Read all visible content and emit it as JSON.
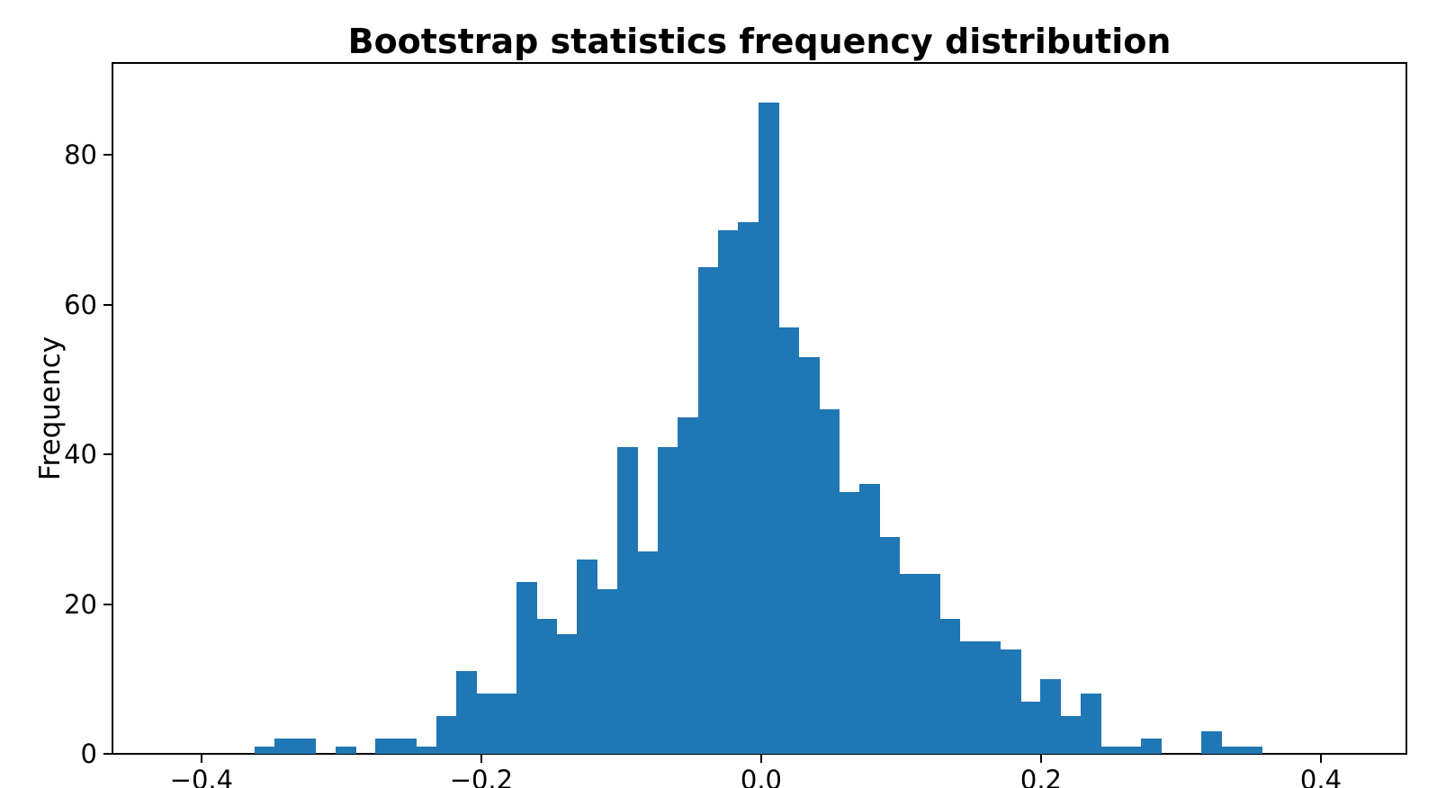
{
  "chart_data": {
    "type": "bar",
    "subtype": "histogram",
    "title": "Bootstrap statistics frequency distribution",
    "xlabel": "",
    "ylabel": "Frequency",
    "bar_color": "#1f77b4",
    "text_color": "#000000",
    "background_color": "#ffffff",
    "grid": false,
    "legend": null,
    "bin_start": -0.362,
    "bin_width": 0.0144,
    "num_bins": 50,
    "total_samples": 1000,
    "counts": [
      1,
      2,
      2,
      0,
      1,
      0,
      2,
      2,
      1,
      5,
      11,
      8,
      8,
      23,
      18,
      16,
      26,
      22,
      41,
      27,
      41,
      45,
      65,
      70,
      71,
      87,
      57,
      53,
      46,
      35,
      36,
      29,
      24,
      24,
      18,
      15,
      15,
      14,
      7,
      10,
      5,
      8,
      1,
      1,
      2,
      0,
      0,
      3,
      1,
      1
    ],
    "xlim": [
      -0.4636,
      0.4611
    ],
    "ylim": [
      0,
      92.3
    ],
    "xticks": {
      "values": [
        -0.4,
        -0.2,
        0.0,
        0.2,
        0.4
      ],
      "labels": [
        "−0.4",
        "−0.2",
        "0.0",
        "0.2",
        "0.4"
      ]
    },
    "yticks": {
      "values": [
        0,
        20,
        40,
        60,
        80
      ],
      "labels": [
        "0",
        "20",
        "40",
        "60",
        "80"
      ]
    }
  }
}
